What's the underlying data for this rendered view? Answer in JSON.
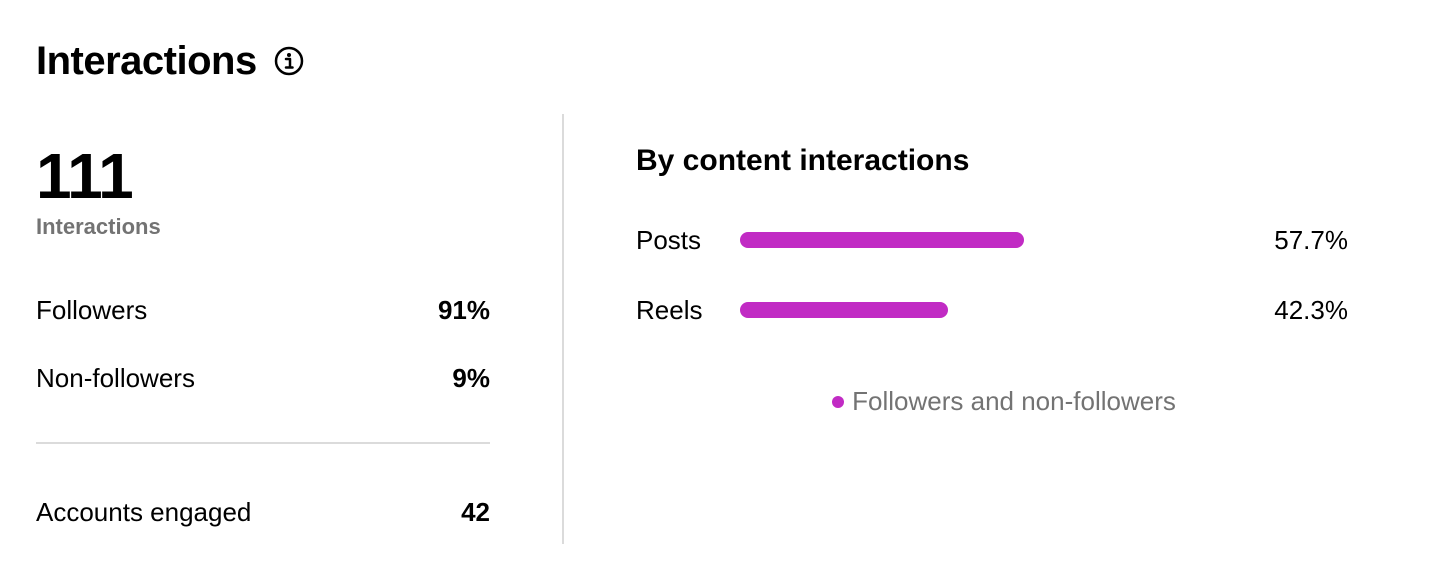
{
  "header": {
    "title": "Interactions",
    "info_icon": "info-circle-icon"
  },
  "summary": {
    "total": "111",
    "total_label": "Interactions",
    "rows": [
      {
        "label": "Followers",
        "value": "91%"
      },
      {
        "label": "Non-followers",
        "value": "9%"
      }
    ],
    "accounts_engaged": {
      "label": "Accounts engaged",
      "value": "42"
    }
  },
  "breakdown": {
    "title": "By content interactions",
    "legend": "Followers and non-followers",
    "accent_color": "#c12bc4"
  },
  "chart_data": {
    "type": "bar",
    "orientation": "horizontal",
    "title": "By content interactions",
    "categories": [
      "Posts",
      "Reels"
    ],
    "series": [
      {
        "name": "Followers and non-followers",
        "values": [
          57.7,
          42.3
        ],
        "labels": [
          "57.7%",
          "42.3%"
        ],
        "color": "#c12bc4"
      }
    ],
    "xlim": [
      0,
      100
    ],
    "grid": false,
    "legend_position": "bottom"
  }
}
